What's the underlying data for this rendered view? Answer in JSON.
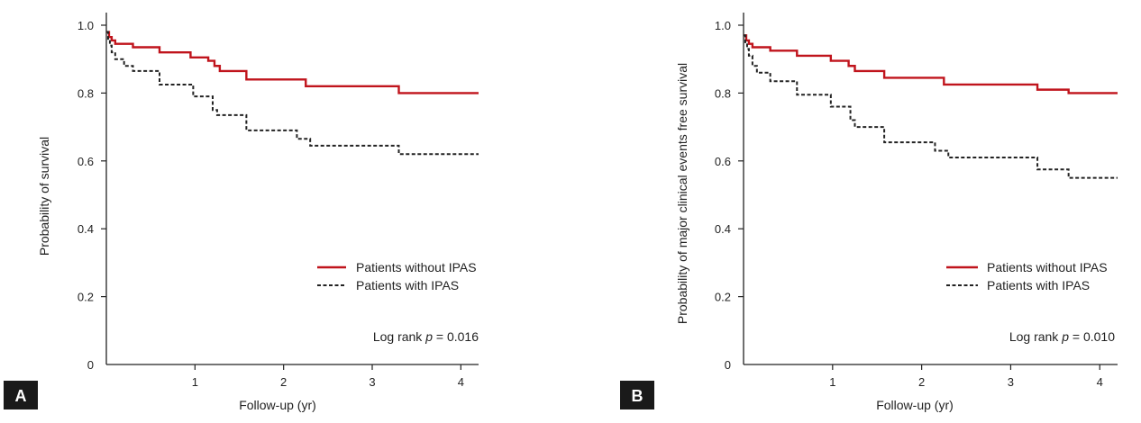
{
  "chart_data": [
    {
      "type": "line",
      "panel_label": "A",
      "title": "",
      "xlabel": "Follow-up (yr)",
      "ylabel": "Probability of survival",
      "xlim": [
        0,
        4.2
      ],
      "ylim": [
        0,
        1.0
      ],
      "x_ticks": [
        1,
        2,
        3,
        4
      ],
      "x_tick_labels": [
        "1",
        "2",
        "3",
        "4"
      ],
      "y_ticks": [
        0,
        0.2,
        0.4,
        0.6,
        0.8,
        1.0
      ],
      "y_tick_labels": [
        "0",
        "0.2",
        "0.4",
        "0.6",
        "0.8",
        "1.0"
      ],
      "grid": false,
      "legend_position": "right",
      "annotation": {
        "prefix": "Log rank ",
        "p_symbol": "p",
        "value_text": " = 0.016"
      },
      "series": [
        {
          "name": "Patients without IPAS",
          "style": "solid",
          "color": "#c0141c",
          "x": [
            0,
            0.03,
            0.06,
            0.1,
            0.3,
            0.6,
            0.95,
            1.15,
            1.22,
            1.28,
            1.58,
            2.25,
            3.3,
            4.2
          ],
          "y": [
            0.98,
            0.965,
            0.955,
            0.945,
            0.935,
            0.92,
            0.905,
            0.895,
            0.88,
            0.865,
            0.84,
            0.82,
            0.8,
            0.8
          ]
        },
        {
          "name": "Patients with IPAS",
          "style": "dashed",
          "color": "#222222",
          "x": [
            0,
            0.02,
            0.04,
            0.06,
            0.1,
            0.2,
            0.3,
            0.6,
            0.98,
            1.2,
            1.25,
            1.58,
            2.15,
            2.3,
            3.3,
            4.2
          ],
          "y": [
            0.98,
            0.96,
            0.94,
            0.92,
            0.9,
            0.88,
            0.865,
            0.825,
            0.79,
            0.75,
            0.735,
            0.69,
            0.665,
            0.645,
            0.62,
            0.62
          ]
        }
      ]
    },
    {
      "type": "line",
      "panel_label": "B",
      "title": "",
      "xlabel": "Follow-up (yr)",
      "ylabel": "Probability of major clinical events free survival",
      "xlim": [
        0,
        4.2
      ],
      "ylim": [
        0,
        1.0
      ],
      "x_ticks": [
        1,
        2,
        3,
        4
      ],
      "x_tick_labels": [
        "1",
        "2",
        "3",
        "4"
      ],
      "y_ticks": [
        0,
        0.2,
        0.4,
        0.6,
        0.8,
        1.0
      ],
      "y_tick_labels": [
        "0",
        "0.2",
        "0.4",
        "0.6",
        "0.8",
        "1.0"
      ],
      "grid": false,
      "legend_position": "right",
      "annotation": {
        "prefix": "Log rank ",
        "p_symbol": "p",
        "value_text": " = 0.010"
      },
      "series": [
        {
          "name": "Patients without IPAS",
          "style": "solid",
          "color": "#c0141c",
          "x": [
            0,
            0.03,
            0.06,
            0.1,
            0.3,
            0.6,
            0.98,
            1.18,
            1.25,
            1.58,
            2.25,
            3.3,
            3.65,
            4.2
          ],
          "y": [
            0.97,
            0.955,
            0.945,
            0.935,
            0.925,
            0.91,
            0.895,
            0.88,
            0.865,
            0.845,
            0.825,
            0.81,
            0.8,
            0.8
          ]
        },
        {
          "name": "Patients with IPAS",
          "style": "dashed",
          "color": "#222222",
          "x": [
            0,
            0.02,
            0.04,
            0.06,
            0.1,
            0.15,
            0.3,
            0.6,
            0.98,
            1.2,
            1.25,
            1.58,
            2.15,
            2.3,
            3.3,
            3.65,
            4.2
          ],
          "y": [
            0.97,
            0.95,
            0.93,
            0.91,
            0.88,
            0.86,
            0.835,
            0.795,
            0.76,
            0.72,
            0.7,
            0.655,
            0.63,
            0.61,
            0.575,
            0.55,
            0.55
          ]
        }
      ]
    }
  ]
}
